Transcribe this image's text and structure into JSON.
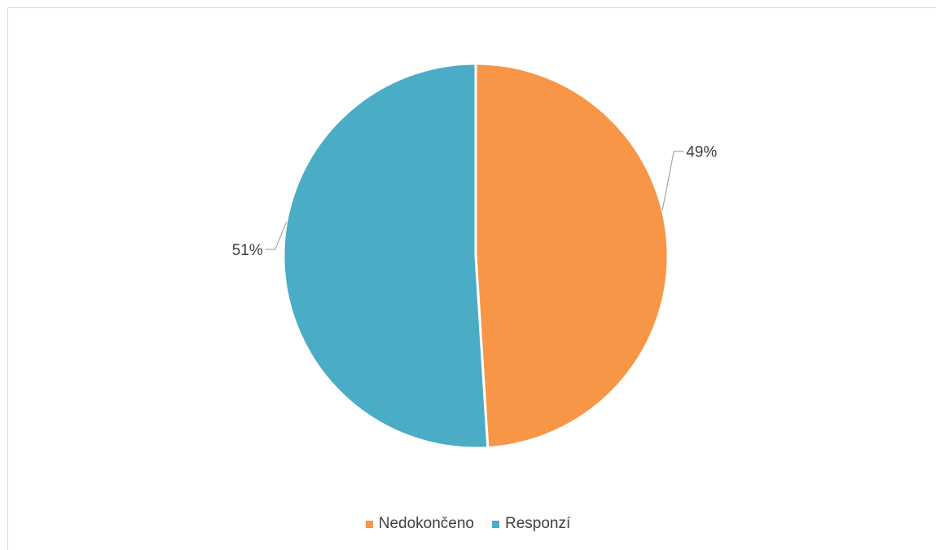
{
  "chart_data": {
    "type": "pie",
    "title": "",
    "categories": [
      "Nedokončeno",
      "Responzí"
    ],
    "values": [
      49,
      51
    ],
    "labels": [
      "49%",
      "51%"
    ],
    "colors": [
      "#F79646",
      "#4BACC6"
    ],
    "legend_position": "bottom",
    "start_angle_deg": 0,
    "direction": "clockwise"
  },
  "legend": {
    "items": [
      {
        "label": "Nedokončeno",
        "color": "#F79646"
      },
      {
        "label": "Responzí",
        "color": "#4BACC6"
      }
    ]
  }
}
